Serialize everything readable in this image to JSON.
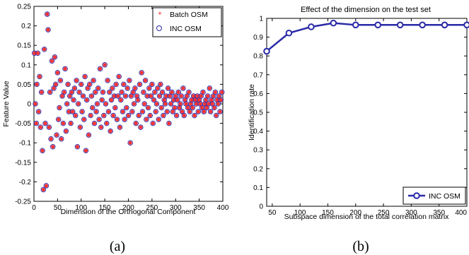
{
  "chart_data": [
    {
      "type": "scatter",
      "xlabel": "Dimension of the Orthogonal Component",
      "ylabel": "Feature Value",
      "xlim": [
        0,
        400
      ],
      "ylim": [
        -0.25,
        0.25
      ],
      "xticks": [
        "0",
        "50",
        "100",
        "150",
        "200",
        "250",
        "300",
        "350",
        "400"
      ],
      "yticks": [
        "0.25",
        "0.2",
        "0.15",
        "0.1",
        "0.05",
        "0",
        "-0.05",
        "-0.1",
        "-0.15",
        "-0.2",
        "-0.25"
      ],
      "grid": false,
      "legend_position": "top-right",
      "caption": "(a)",
      "series": [
        {
          "name": "Batch OSM",
          "marker": "asterisk",
          "color": "#ff3333"
        },
        {
          "name": "INC OSM",
          "marker": "circle",
          "color": "#2a2aa8"
        }
      ],
      "points": [
        [
          1,
          0.13
        ],
        [
          3,
          0.0
        ],
        [
          5,
          -0.05
        ],
        [
          6,
          0.05
        ],
        [
          8,
          0.13
        ],
        [
          10,
          -0.02
        ],
        [
          12,
          0.07
        ],
        [
          14,
          -0.06
        ],
        [
          16,
          0.03
        ],
        [
          18,
          -0.12
        ],
        [
          20,
          -0.22
        ],
        [
          22,
          0.14
        ],
        [
          24,
          -0.05
        ],
        [
          26,
          -0.21
        ],
        [
          28,
          0.23
        ],
        [
          30,
          0.19
        ],
        [
          32,
          -0.06
        ],
        [
          34,
          0.03
        ],
        [
          36,
          -0.09
        ],
        [
          38,
          0.11
        ],
        [
          40,
          -0.11
        ],
        [
          42,
          0.04
        ],
        [
          44,
          0.12
        ],
        [
          46,
          0.05
        ],
        [
          48,
          -0.08
        ],
        [
          50,
          0.08
        ],
        [
          52,
          -0.04
        ],
        [
          54,
          -0.01
        ],
        [
          56,
          0.06
        ],
        [
          58,
          -0.09
        ],
        [
          60,
          0.02
        ],
        [
          62,
          -0.05
        ],
        [
          64,
          0.03
        ],
        [
          66,
          0.09
        ],
        [
          68,
          -0.07
        ],
        [
          70,
          0.0
        ],
        [
          72,
          0.05
        ],
        [
          74,
          -0.02
        ],
        [
          76,
          0.02
        ],
        [
          78,
          -0.05
        ],
        [
          80,
          0.03
        ],
        [
          82,
          -0.02
        ],
        [
          84,
          0.01
        ],
        [
          86,
          0.04
        ],
        [
          88,
          -0.03
        ],
        [
          90,
          0.06
        ],
        [
          92,
          -0.11
        ],
        [
          94,
          0.0
        ],
        [
          96,
          0.03
        ],
        [
          98,
          -0.06
        ],
        [
          100,
          0.05
        ],
        [
          102,
          -0.02
        ],
        [
          104,
          0.02
        ],
        [
          106,
          -0.04
        ],
        [
          108,
          0.07
        ],
        [
          110,
          -0.12
        ],
        [
          112,
          0.01
        ],
        [
          114,
          0.04
        ],
        [
          116,
          -0.08
        ],
        [
          118,
          0.05
        ],
        [
          120,
          -0.03
        ],
        [
          122,
          0.02
        ],
        [
          124,
          -0.01
        ],
        [
          126,
          0.06
        ],
        [
          128,
          -0.05
        ],
        [
          130,
          0.03
        ],
        [
          132,
          -0.02
        ],
        [
          134,
          0.0
        ],
        [
          136,
          0.04
        ],
        [
          138,
          -0.04
        ],
        [
          140,
          0.09
        ],
        [
          142,
          -0.06
        ],
        [
          144,
          0.01
        ],
        [
          146,
          0.03
        ],
        [
          148,
          -0.03
        ],
        [
          150,
          0.1
        ],
        [
          152,
          0.0
        ],
        [
          154,
          -0.05
        ],
        [
          156,
          0.06
        ],
        [
          158,
          -0.02
        ],
        [
          160,
          0.03
        ],
        [
          162,
          -0.07
        ],
        [
          164,
          0.01
        ],
        [
          166,
          0.04
        ],
        [
          168,
          -0.03
        ],
        [
          170,
          0.02
        ],
        [
          172,
          -0.01
        ],
        [
          174,
          0.05
        ],
        [
          176,
          -0.04
        ],
        [
          178,
          0.02
        ],
        [
          180,
          0.07
        ],
        [
          182,
          -0.06
        ],
        [
          184,
          0.01
        ],
        [
          186,
          0.03
        ],
        [
          188,
          -0.02
        ],
        [
          190,
          0.05
        ],
        [
          192,
          -0.04
        ],
        [
          194,
          0.02
        ],
        [
          196,
          -0.01
        ],
        [
          198,
          0.04
        ],
        [
          200,
          -0.03
        ],
        [
          202,
          0.06
        ],
        [
          204,
          -0.1
        ],
        [
          206,
          0.02
        ],
        [
          208,
          -0.02
        ],
        [
          210,
          0.03
        ],
        [
          212,
          0.0
        ],
        [
          214,
          0.04
        ],
        [
          216,
          -0.05
        ],
        [
          218,
          0.02
        ],
        [
          220,
          0.01
        ],
        [
          222,
          -0.03
        ],
        [
          224,
          0.05
        ],
        [
          226,
          -0.06
        ],
        [
          228,
          0.08
        ],
        [
          230,
          -0.02
        ],
        [
          232,
          0.03
        ],
        [
          234,
          0.0
        ],
        [
          236,
          0.06
        ],
        [
          238,
          -0.04
        ],
        [
          240,
          0.02
        ],
        [
          242,
          -0.01
        ],
        [
          244,
          0.04
        ],
        [
          246,
          -0.03
        ],
        [
          248,
          0.02
        ],
        [
          250,
          0.05
        ],
        [
          252,
          -0.05
        ],
        [
          254,
          0.01
        ],
        [
          256,
          0.03
        ],
        [
          258,
          -0.02
        ],
        [
          260,
          0.0
        ],
        [
          262,
          0.04
        ],
        [
          264,
          -0.04
        ],
        [
          266,
          0.02
        ],
        [
          268,
          0.05
        ],
        [
          270,
          -0.01
        ],
        [
          272,
          0.03
        ],
        [
          274,
          -0.03
        ],
        [
          276,
          0.01
        ],
        [
          278,
          0.0
        ],
        [
          280,
          0.02
        ],
        [
          282,
          -0.02
        ],
        [
          284,
          0.04
        ],
        [
          286,
          -0.05
        ],
        [
          288,
          0.02
        ],
        [
          290,
          0.0
        ],
        [
          292,
          0.03
        ],
        [
          294,
          -0.02
        ],
        [
          296,
          0.01
        ],
        [
          298,
          -0.01
        ],
        [
          300,
          0.02
        ],
        [
          302,
          -0.03
        ],
        [
          304,
          0.01
        ],
        [
          306,
          0.03
        ],
        [
          308,
          -0.01
        ],
        [
          310,
          0.0
        ],
        [
          312,
          0.02
        ],
        [
          314,
          -0.02
        ],
        [
          316,
          0.04
        ],
        [
          318,
          -0.03
        ],
        [
          320,
          0.01
        ],
        [
          322,
          0.0
        ],
        [
          324,
          0.02
        ],
        [
          326,
          -0.01
        ],
        [
          328,
          0.03
        ],
        [
          330,
          -0.02
        ],
        [
          332,
          0.0
        ],
        [
          334,
          0.01
        ],
        [
          336,
          -0.01
        ],
        [
          338,
          0.02
        ],
        [
          340,
          -0.03
        ],
        [
          342,
          0.01
        ],
        [
          344,
          0.0
        ],
        [
          346,
          0.02
        ],
        [
          348,
          -0.02
        ],
        [
          350,
          0.01
        ],
        [
          352,
          0.0
        ],
        [
          354,
          0.02
        ],
        [
          356,
          -0.01
        ],
        [
          358,
          0.03
        ],
        [
          360,
          -0.02
        ],
        [
          362,
          0.0
        ],
        [
          364,
          0.01
        ],
        [
          366,
          -0.01
        ],
        [
          368,
          0.02
        ],
        [
          370,
          0.0
        ],
        [
          372,
          0.04
        ],
        [
          374,
          -0.02
        ],
        [
          376,
          0.01
        ],
        [
          378,
          0.0
        ],
        [
          380,
          0.02
        ],
        [
          382,
          -0.01
        ],
        [
          384,
          0.03
        ],
        [
          386,
          -0.03
        ],
        [
          388,
          0.01
        ],
        [
          390,
          0.0
        ],
        [
          392,
          0.02
        ],
        [
          394,
          -0.02
        ],
        [
          396,
          0.01
        ],
        [
          398,
          0.03
        ]
      ]
    },
    {
      "type": "line",
      "title": "Effect of the dimension on the test set",
      "xlabel": "Subspace dimension of the total correlation matrix",
      "ylabel": "Identification rate",
      "xlim": [
        40,
        400
      ],
      "ylim": [
        0,
        1
      ],
      "xticks": [
        "50",
        "100",
        "150",
        "200",
        "250",
        "300",
        "350",
        "400"
      ],
      "yticks": [
        "1",
        "0.9",
        "0.8",
        "0.7",
        "0.6",
        "0.5",
        "0.4",
        "0.3",
        "0.2",
        "0.1",
        "0"
      ],
      "grid": false,
      "legend_position": "bottom-right",
      "caption": "(b)",
      "x": [
        40,
        80,
        120,
        160,
        200,
        240,
        280,
        320,
        360,
        400
      ],
      "series": [
        {
          "name": "INC OSM",
          "color": "#2a2aa8",
          "values": [
            0.825,
            0.922,
            0.955,
            0.975,
            0.965,
            0.965,
            0.965,
            0.965,
            0.965,
            0.965
          ]
        }
      ]
    }
  ]
}
